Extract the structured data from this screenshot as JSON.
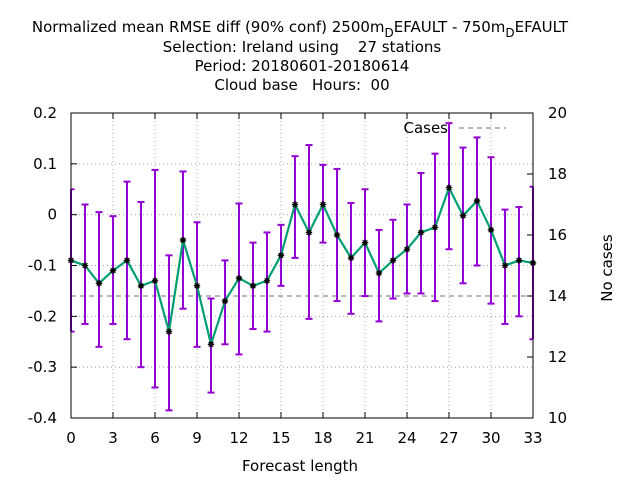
{
  "chart_data": {
    "type": "line",
    "title_lines": [
      "Normalized mean RMSE diff (90% conf) 2500m_DEFAULT - 750m_DEFAULT",
      "Selection: Ireland using    27 stations",
      "Period: 20180601-20180614",
      "Cloud base   Hours:  00"
    ],
    "title_main": {
      "a": "Normalized mean RMSE diff (90% conf) 2500m",
      "sub1": "D",
      "b": "EFAULT - 750m",
      "sub2": "D",
      "c": "EFAULT"
    },
    "xlabel": "Forecast length",
    "ylabel": "",
    "y2label": "No cases",
    "xlim": [
      0,
      33
    ],
    "ylim": [
      -0.4,
      0.2
    ],
    "y2lim": [
      10,
      20
    ],
    "xticks": [
      0,
      3,
      6,
      9,
      12,
      15,
      18,
      21,
      24,
      27,
      30,
      33
    ],
    "yticks": [
      -0.4,
      -0.3,
      -0.2,
      -0.1,
      0,
      0.1,
      0.2
    ],
    "ytick_labels": [
      "-0.4",
      "-0.3",
      "-0.2",
      "-0.1",
      "0",
      "0.1",
      "0.2"
    ],
    "y2ticks": [
      10,
      12,
      14,
      16,
      18,
      20
    ],
    "grid": true,
    "legend": {
      "position": "top-right",
      "entries": [
        "Cases"
      ]
    },
    "series": [
      {
        "name": "",
        "color": "#009e73",
        "marker_color": "#000000",
        "x": [
          0,
          1,
          2,
          3,
          4,
          5,
          6,
          7,
          8,
          9,
          10,
          11,
          12,
          13,
          14,
          15,
          16,
          17,
          18,
          19,
          20,
          21,
          22,
          23,
          24,
          25,
          26,
          27,
          28,
          29,
          30,
          31,
          32,
          33
        ],
        "y": [
          -0.09,
          -0.1,
          -0.135,
          -0.11,
          -0.09,
          -0.14,
          -0.13,
          -0.23,
          -0.05,
          -0.14,
          -0.255,
          -0.17,
          -0.125,
          -0.14,
          -0.13,
          -0.08,
          0.02,
          -0.035,
          0.02,
          -0.04,
          -0.085,
          -0.055,
          -0.115,
          -0.09,
          -0.068,
          -0.035,
          -0.025,
          0.053,
          -0.002,
          0.027,
          -0.03,
          -0.1,
          -0.09,
          -0.095
        ],
        "err_low": [
          -0.23,
          -0.215,
          -0.26,
          -0.215,
          -0.245,
          -0.3,
          -0.34,
          -0.385,
          -0.185,
          -0.26,
          -0.35,
          -0.255,
          -0.275,
          -0.225,
          -0.23,
          -0.14,
          -0.085,
          -0.205,
          -0.055,
          -0.17,
          -0.195,
          -0.16,
          -0.21,
          -0.165,
          -0.155,
          -0.155,
          -0.17,
          -0.068,
          -0.135,
          -0.1,
          -0.175,
          -0.215,
          -0.2,
          -0.245
        ],
        "err_high": [
          0.05,
          0.02,
          0.005,
          -0.003,
          0.065,
          0.025,
          0.088,
          -0.08,
          0.085,
          -0.015,
          -0.165,
          -0.09,
          0.022,
          -0.055,
          -0.035,
          -0.02,
          0.115,
          0.137,
          0.098,
          0.09,
          0.023,
          0.05,
          -0.03,
          -0.01,
          0.02,
          0.082,
          0.12,
          0.18,
          0.132,
          0.152,
          0.113,
          0.01,
          0.015,
          0.055
        ],
        "errorbar_color": "#9400d3"
      },
      {
        "name": "Cases",
        "axis": "y2",
        "color": "#a0a0a0",
        "style": "dashed",
        "x": [
          0,
          33
        ],
        "y": [
          14,
          14
        ]
      }
    ]
  }
}
